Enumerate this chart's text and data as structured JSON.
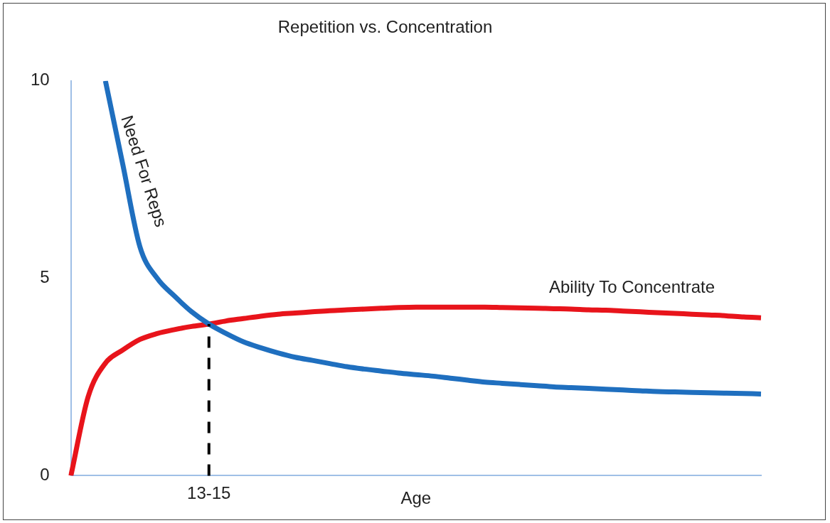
{
  "chart_data": {
    "type": "line",
    "title": "Repetition vs. Concentration",
    "xlabel": "Age",
    "categories": [
      null,
      null,
      null,
      null,
      null,
      null,
      null,
      null,
      "13-15",
      null,
      null,
      null,
      null,
      null,
      null,
      null,
      null,
      null,
      null,
      null,
      null,
      null,
      null,
      null,
      null,
      null,
      null,
      null,
      null,
      null,
      null,
      null,
      null,
      null,
      null,
      null,
      null,
      null,
      null,
      null,
      null
    ],
    "series": [
      {
        "name": "Need For Reps",
        "color": "#1f6fbf",
        "values": [
          null,
          null,
          10,
          7.9,
          5.8,
          5.0,
          4.55,
          4.15,
          3.84,
          3.6,
          3.39,
          3.24,
          3.11,
          3.0,
          2.92,
          2.84,
          2.76,
          2.7,
          2.65,
          2.6,
          2.56,
          2.52,
          2.47,
          2.42,
          2.37,
          2.34,
          2.31,
          2.28,
          2.25,
          2.23,
          2.21,
          2.19,
          2.17,
          2.15,
          2.13,
          2.12,
          2.11,
          2.1,
          2.09,
          2.08,
          2.07
        ]
      },
      {
        "name": "Ability To Concentrate",
        "color": "#e8141b",
        "values": [
          0,
          2.0,
          2.85,
          3.18,
          3.45,
          3.6,
          3.7,
          3.78,
          3.84,
          3.92,
          3.98,
          4.04,
          4.09,
          4.12,
          4.15,
          4.18,
          4.2,
          4.22,
          4.24,
          4.26,
          4.27,
          4.27,
          4.27,
          4.27,
          4.27,
          4.26,
          4.25,
          4.24,
          4.23,
          4.22,
          4.2,
          4.19,
          4.17,
          4.15,
          4.13,
          4.11,
          4.09,
          4.07,
          4.05,
          4.02,
          4.0
        ]
      }
    ],
    "ylim": [
      0,
      10
    ],
    "yticks": [
      0,
      5,
      10
    ],
    "grid": false,
    "legend": false,
    "marker": "none",
    "line_style": "solid",
    "ref_lines": [
      {
        "axis": "x",
        "value": "13-15",
        "color": "#000000",
        "line_style": "dashed"
      }
    ]
  }
}
